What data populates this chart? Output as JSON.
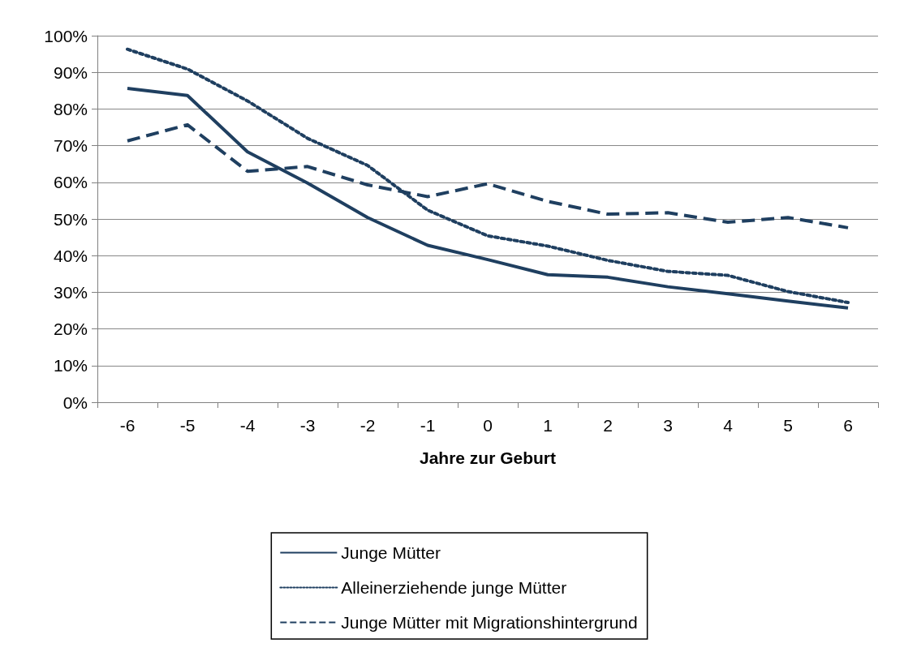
{
  "chart_data": {
    "type": "line",
    "xlabel": "Jahre zur Geburt",
    "categories": [
      "-6",
      "-5",
      "-4",
      "-3",
      "-2",
      "-1",
      "0",
      "1",
      "2",
      "3",
      "4",
      "5",
      "6"
    ],
    "series": [
      {
        "name": "Junge Mütter",
        "color": "#1f3f60",
        "line_style": "solid",
        "values": [
          85.6,
          83.7,
          68.3,
          59.8,
          50.4,
          42.8,
          38.9,
          34.8,
          34.1,
          31.5,
          29.6,
          27.6,
          25.7
        ]
      },
      {
        "name": "Alleinerziehende junge Mütter",
        "color": "#1f3f60",
        "line_style": "dotted",
        "values": [
          96.3,
          90.9,
          82.2,
          72,
          64.6,
          52.4,
          45.4,
          42.6,
          38.7,
          35.7,
          34.6,
          30.2,
          27.2
        ]
      },
      {
        "name": "Junge Mütter mit Migrationshintergrund",
        "color": "#1f3f60",
        "line_style": "dashed",
        "values": [
          71.3,
          75.7,
          63,
          64.3,
          59.3,
          56.1,
          59.6,
          54.8,
          51.3,
          51.7,
          49.1,
          50.4,
          47.6
        ]
      }
    ],
    "ylim": [
      0,
      100
    ],
    "yticks": [
      {
        "value": 0,
        "label": "0%"
      },
      {
        "value": 10,
        "label": "10%"
      },
      {
        "value": 20,
        "label": "20%"
      },
      {
        "value": 30,
        "label": "30%"
      },
      {
        "value": 40,
        "label": "40%"
      },
      {
        "value": 50,
        "label": "50%"
      },
      {
        "value": 60,
        "label": "60%"
      },
      {
        "value": 70,
        "label": "70%"
      },
      {
        "value": 80,
        "label": "80%"
      },
      {
        "value": 90,
        "label": "90%"
      },
      {
        "value": 100,
        "label": "100%"
      }
    ],
    "grid": "y",
    "legend": "bottom",
    "marker": "none"
  }
}
